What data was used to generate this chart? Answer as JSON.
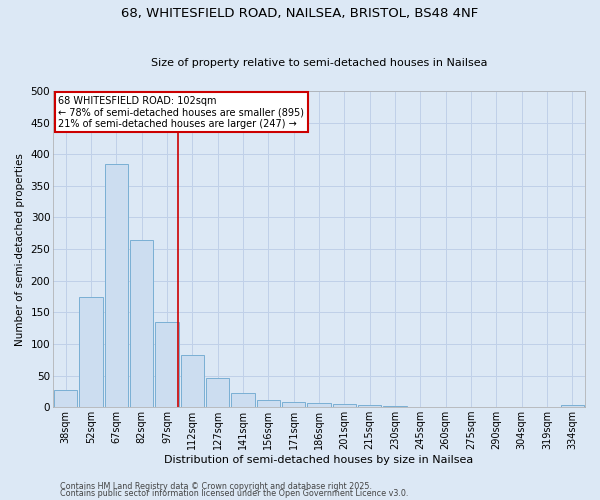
{
  "title1": "68, WHITESFIELD ROAD, NAILSEA, BRISTOL, BS48 4NF",
  "title2": "Size of property relative to semi-detached houses in Nailsea",
  "categories": [
    "38sqm",
    "52sqm",
    "67sqm",
    "82sqm",
    "97sqm",
    "112sqm",
    "127sqm",
    "141sqm",
    "156sqm",
    "171sqm",
    "186sqm",
    "201sqm",
    "215sqm",
    "230sqm",
    "245sqm",
    "260sqm",
    "275sqm",
    "290sqm",
    "304sqm",
    "319sqm",
    "334sqm"
  ],
  "values": [
    27,
    175,
    385,
    265,
    135,
    82,
    46,
    22,
    12,
    8,
    6,
    5,
    3,
    2,
    1,
    0,
    0,
    0,
    0,
    0,
    4
  ],
  "bar_color": "#ccddf0",
  "bar_edge_color": "#7aafd4",
  "grid_color": "#c0d0e8",
  "background_color": "#dce8f5",
  "ylabel": "Number of semi-detached properties",
  "xlabel": "Distribution of semi-detached houses by size in Nailsea",
  "annotation_line1": "68 WHITESFIELD ROAD: 102sqm",
  "annotation_line2": "← 78% of semi-detached houses are smaller (895)",
  "annotation_line3": "21% of semi-detached houses are larger (247) →",
  "annotation_box_color": "#ffffff",
  "annotation_border_color": "#cc0000",
  "red_line_index": 4.42,
  "footnote1": "Contains HM Land Registry data © Crown copyright and database right 2025.",
  "footnote2": "Contains public sector information licensed under the Open Government Licence v3.0.",
  "ylim": [
    0,
    500
  ],
  "yticks": [
    0,
    50,
    100,
    150,
    200,
    250,
    300,
    350,
    400,
    450,
    500
  ]
}
